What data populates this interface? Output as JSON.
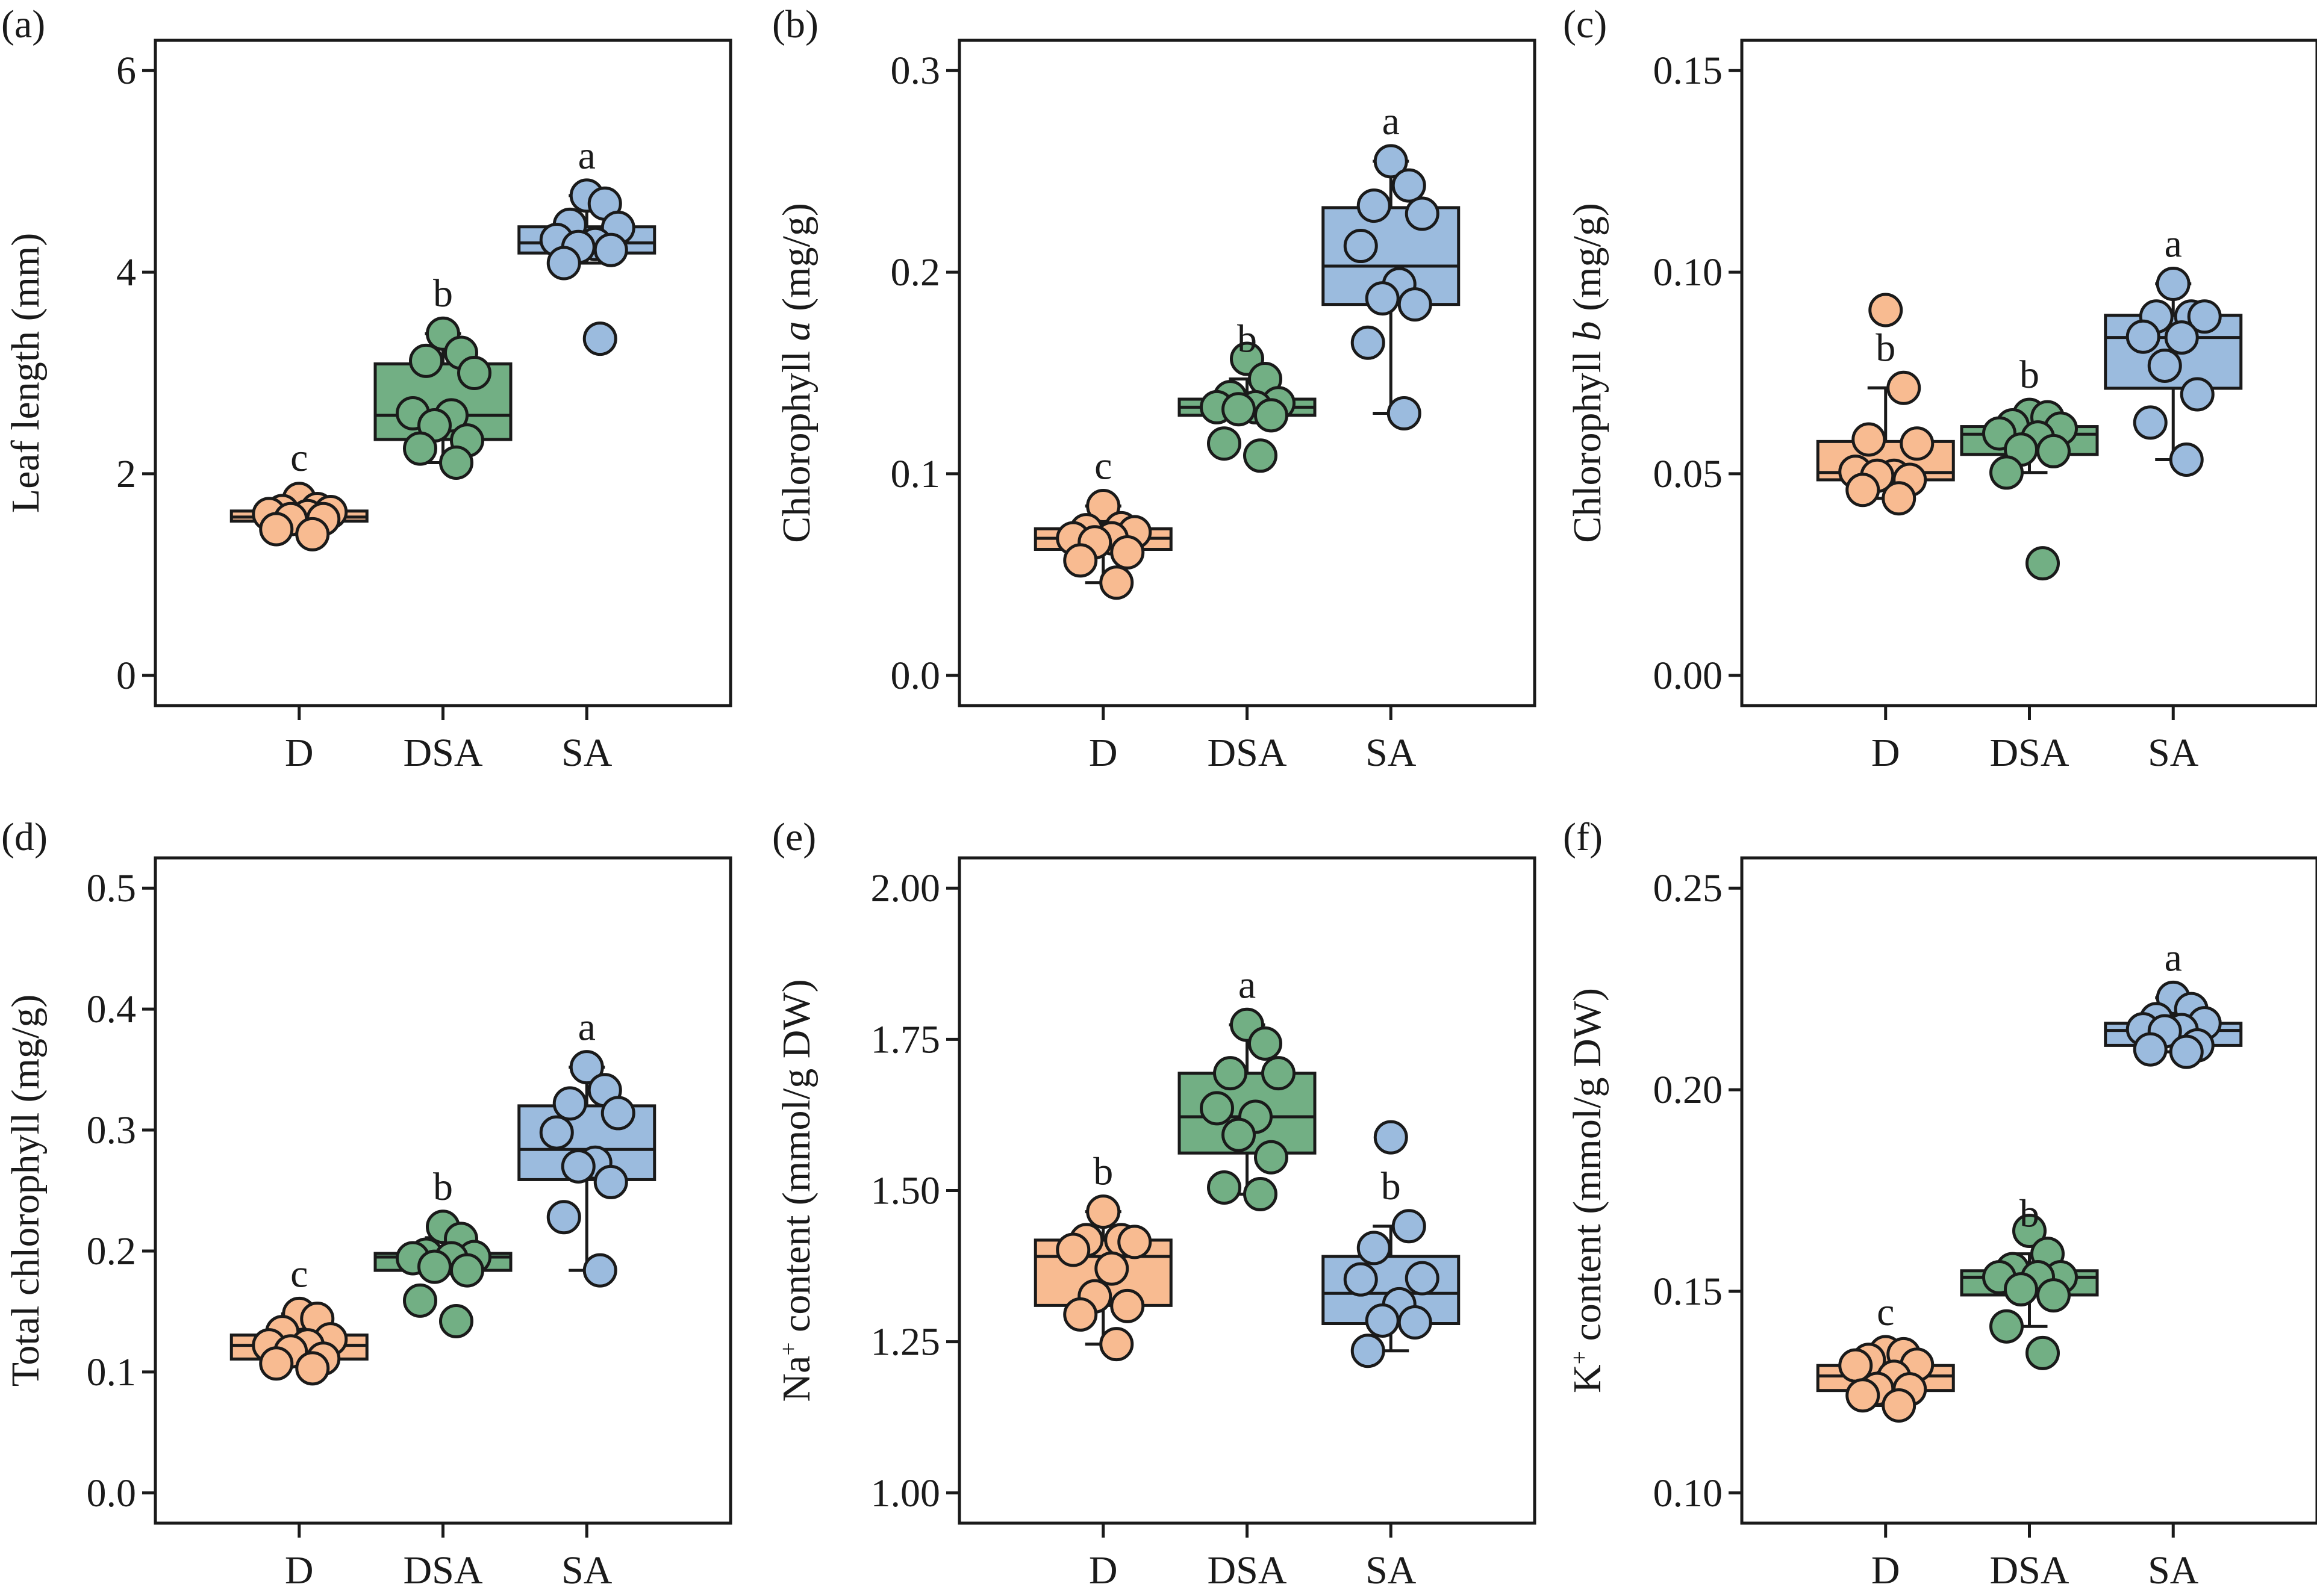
{
  "figure": {
    "groups": [
      "D",
      "DSA",
      "SA"
    ],
    "group_colors": {
      "D": "#F8BB91",
      "DSA": "#72AF84",
      "SA": "#9BBBDE"
    },
    "stroke_color": "#1a1a1a"
  },
  "chart_data": [
    {
      "panel_label": "(a)",
      "type": "box",
      "title": "",
      "xlabel": "",
      "ylabel_parts": [
        {
          "text": "Leaf length (mm)",
          "style": "normal"
        }
      ],
      "categories": [
        "D",
        "DSA",
        "SA"
      ],
      "ylim": [
        -0.3,
        6.3
      ],
      "yticks": [
        0,
        2,
        4,
        6
      ],
      "ytick_labels": [
        "0",
        "2",
        "4",
        "6"
      ],
      "grid": false,
      "boxes": [
        {
          "group": "D",
          "q1": 1.53,
          "median": 1.57,
          "q3": 1.63,
          "whisker_low": 1.4,
          "whisker_high": 1.76,
          "letter": "c",
          "points": [
            1.75,
            1.65,
            1.63,
            1.62,
            1.6,
            1.58,
            1.55,
            1.55,
            1.45,
            1.4
          ]
        },
        {
          "group": "DSA",
          "q1": 2.34,
          "median": 2.58,
          "q3": 3.09,
          "whisker_low": 2.11,
          "whisker_high": 3.39,
          "letter": "b",
          "points": [
            3.39,
            3.2,
            3.12,
            3.0,
            2.6,
            2.58,
            2.48,
            2.33,
            2.25,
            2.11
          ]
        },
        {
          "group": "SA",
          "q1": 4.19,
          "median": 4.29,
          "q3": 4.45,
          "whisker_low": 4.09,
          "whisker_high": 4.76,
          "letter": "a",
          "points": [
            4.76,
            4.68,
            4.47,
            4.44,
            4.32,
            4.28,
            4.25,
            4.22,
            4.09,
            3.34
          ]
        }
      ]
    },
    {
      "panel_label": "(b)",
      "type": "box",
      "title": "",
      "xlabel": "",
      "ylabel_parts": [
        {
          "text": "Chlorophyll ",
          "style": "normal"
        },
        {
          "text": "a",
          "style": "italic"
        },
        {
          "text": " (mg/g)",
          "style": "normal"
        }
      ],
      "categories": [
        "D",
        "DSA",
        "SA"
      ],
      "ylim": [
        -0.015,
        0.315
      ],
      "yticks": [
        0.0,
        0.1,
        0.2,
        0.3
      ],
      "ytick_labels": [
        "0.0",
        "0.1",
        "0.2",
        "0.3"
      ],
      "grid": false,
      "boxes": [
        {
          "group": "D",
          "q1": 0.0625,
          "median": 0.068,
          "q3": 0.0727,
          "whisker_low": 0.046,
          "whisker_high": 0.084,
          "letter": "c",
          "points": [
            0.084,
            0.073,
            0.072,
            0.071,
            0.068,
            0.068,
            0.066,
            0.061,
            0.057,
            0.046
          ]
        },
        {
          "group": "DSA",
          "q1": 0.129,
          "median": 0.133,
          "q3": 0.137,
          "whisker_low": 0.129,
          "whisker_high": 0.147,
          "letter": "b",
          "points": [
            0.157,
            0.147,
            0.138,
            0.135,
            0.133,
            0.133,
            0.132,
            0.129,
            0.115,
            0.109
          ]
        },
        {
          "group": "SA",
          "q1": 0.184,
          "median": 0.203,
          "q3": 0.232,
          "whisker_low": 0.13,
          "whisker_high": 0.255,
          "letter": "a",
          "points": [
            0.255,
            0.243,
            0.233,
            0.229,
            0.213,
            0.194,
            0.187,
            0.184,
            0.165,
            0.13
          ]
        }
      ]
    },
    {
      "panel_label": "(c)",
      "type": "box",
      "title": "",
      "xlabel": "",
      "ylabel_parts": [
        {
          "text": "Chlorophyll ",
          "style": "normal"
        },
        {
          "text": "b",
          "style": "italic"
        },
        {
          "text": " (mg/g)",
          "style": "normal"
        }
      ],
      "categories": [
        "D",
        "DSA",
        "SA"
      ],
      "ylim": [
        -0.0075,
        0.1575
      ],
      "yticks": [
        0.0,
        0.05,
        0.1,
        0.15
      ],
      "ytick_labels": [
        "0.00",
        "0.05",
        "0.10",
        "0.15"
      ],
      "grid": false,
      "boxes": [
        {
          "group": "D",
          "q1": 0.0485,
          "median": 0.0503,
          "q3": 0.058,
          "whisker_low": 0.0439,
          "whisker_high": 0.0713,
          "letter": "b",
          "points": [
            0.0906,
            0.0713,
            0.0585,
            0.0575,
            0.0505,
            0.0495,
            0.0495,
            0.0485,
            0.046,
            0.0439
          ]
        },
        {
          "group": "DSA",
          "q1": 0.0548,
          "median": 0.0598,
          "q3": 0.0617,
          "whisker_low": 0.0503,
          "whisker_high": 0.0646,
          "letter": "b",
          "points": [
            0.0646,
            0.064,
            0.062,
            0.0612,
            0.06,
            0.059,
            0.056,
            0.0556,
            0.0503,
            0.0278
          ]
        },
        {
          "group": "SA",
          "q1": 0.0712,
          "median": 0.0838,
          "q3": 0.0893,
          "whisker_low": 0.0535,
          "whisker_high": 0.0971,
          "letter": "a",
          "points": [
            0.0971,
            0.089,
            0.089,
            0.089,
            0.084,
            0.0838,
            0.0768,
            0.0697,
            0.0627,
            0.0535
          ]
        }
      ]
    },
    {
      "panel_label": "(d)",
      "type": "box",
      "title": "",
      "xlabel": "",
      "ylabel_parts": [
        {
          "text": "Total chlorophyll (mg/g)",
          "style": "normal"
        }
      ],
      "categories": [
        "D",
        "DSA",
        "SA"
      ],
      "ylim": [
        -0.025,
        0.525
      ],
      "yticks": [
        0.0,
        0.1,
        0.2,
        0.3,
        0.4,
        0.5
      ],
      "ytick_labels": [
        "0.0",
        "0.1",
        "0.2",
        "0.3",
        "0.4",
        "0.5"
      ],
      "grid": false,
      "boxes": [
        {
          "group": "D",
          "q1": 0.1107,
          "median": 0.122,
          "q3": 0.1305,
          "whisker_low": 0.1107,
          "whisker_high": 0.148,
          "letter": "c",
          "points": [
            0.148,
            0.144,
            0.133,
            0.127,
            0.122,
            0.122,
            0.117,
            0.111,
            0.107,
            0.103
          ]
        },
        {
          "group": "DSA",
          "q1": 0.184,
          "median": 0.195,
          "q3": 0.198,
          "whisker_low": 0.184,
          "whisker_high": 0.211,
          "letter": "b",
          "points": [
            0.22,
            0.21,
            0.197,
            0.195,
            0.194,
            0.194,
            0.187,
            0.184,
            0.159,
            0.142
          ]
        },
        {
          "group": "SA",
          "q1": 0.259,
          "median": 0.284,
          "q3": 0.32,
          "whisker_low": 0.184,
          "whisker_high": 0.352,
          "letter": "a",
          "points": [
            0.352,
            0.333,
            0.322,
            0.314,
            0.298,
            0.273,
            0.27,
            0.257,
            0.228,
            0.184
          ]
        }
      ]
    },
    {
      "panel_label": "(e)",
      "type": "box",
      "title": "",
      "xlabel": "",
      "ylabel_parts": [
        {
          "text": "Na",
          "style": "normal"
        },
        {
          "text": "+",
          "style": "sup"
        },
        {
          "text": " content (mmol/g DW)",
          "style": "normal"
        }
      ],
      "categories": [
        "D",
        "DSA",
        "SA"
      ],
      "ylim": [
        0.95,
        2.05
      ],
      "yticks": [
        1.0,
        1.25,
        1.5,
        1.75,
        2.0
      ],
      "ytick_labels": [
        "1.00",
        "1.25",
        "1.50",
        "1.75",
        "2.00"
      ],
      "grid": false,
      "boxes": [
        {
          "group": "D",
          "q1": 1.31,
          "median": 1.391,
          "q3": 1.418,
          "whisker_low": 1.246,
          "whisker_high": 1.465,
          "letter": "b",
          "points": [
            1.465,
            1.418,
            1.418,
            1.415,
            1.402,
            1.371,
            1.325,
            1.309,
            1.295,
            1.246
          ]
        },
        {
          "group": "DSA",
          "q1": 1.562,
          "median": 1.622,
          "q3": 1.694,
          "whisker_low": 1.494,
          "whisker_high": 1.774,
          "letter": "a",
          "points": [
            1.774,
            1.743,
            1.694,
            1.694,
            1.636,
            1.622,
            1.592,
            1.555,
            1.505,
            1.494
          ]
        },
        {
          "group": "SA",
          "q1": 1.28,
          "median": 1.33,
          "q3": 1.391,
          "whisker_low": 1.235,
          "whisker_high": 1.441,
          "letter": "b",
          "points": [
            1.588,
            1.441,
            1.405,
            1.355,
            1.353,
            1.312,
            1.285,
            1.282,
            1.235
          ]
        }
      ]
    },
    {
      "panel_label": "(f)",
      "type": "box",
      "title": "",
      "xlabel": "",
      "ylabel_parts": [
        {
          "text": "K",
          "style": "normal"
        },
        {
          "text": "+",
          "style": "sup"
        },
        {
          "text": " content (mmol/g DW)",
          "style": "normal"
        }
      ],
      "categories": [
        "D",
        "DSA",
        "SA"
      ],
      "ylim": [
        0.0925,
        0.2575
      ],
      "yticks": [
        0.1,
        0.15,
        0.2,
        0.25
      ],
      "ytick_labels": [
        "0.10",
        "0.15",
        "0.20",
        "0.25"
      ],
      "grid": false,
      "boxes": [
        {
          "group": "D",
          "q1": 0.1254,
          "median": 0.129,
          "q3": 0.1316,
          "whisker_low": 0.1217,
          "whisker_high": 0.1344,
          "letter": "c",
          "points": [
            0.1349,
            0.1344,
            0.133,
            0.1318,
            0.1316,
            0.1288,
            0.1258,
            0.1257,
            0.1242,
            0.1217
          ]
        },
        {
          "group": "DSA",
          "q1": 0.1491,
          "median": 0.1535,
          "q3": 0.1551,
          "whisker_low": 0.1413,
          "whisker_high": 0.1593,
          "letter": "b",
          "points": [
            0.165,
            0.1593,
            0.1555,
            0.1535,
            0.1535,
            0.1535,
            0.1505,
            0.149,
            0.1413,
            0.1347
          ]
        },
        {
          "group": "SA",
          "q1": 0.211,
          "median": 0.2147,
          "q3": 0.2165,
          "whisker_low": 0.2094,
          "whisker_high": 0.2228,
          "letter": "a",
          "points": [
            0.2228,
            0.22,
            0.2175,
            0.2165,
            0.215,
            0.2148,
            0.2145,
            0.211,
            0.21,
            0.2094
          ]
        }
      ]
    }
  ]
}
